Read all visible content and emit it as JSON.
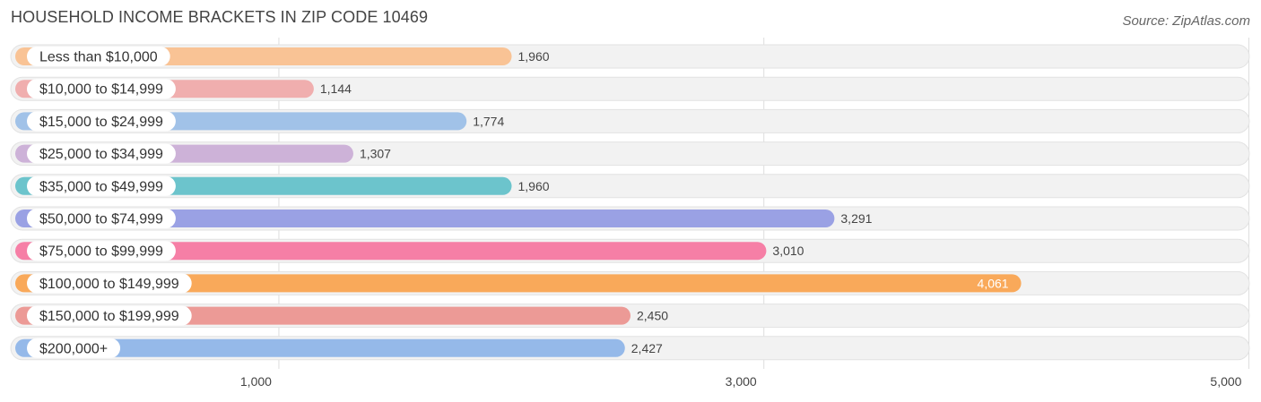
{
  "header": {
    "title": "HOUSEHOLD INCOME BRACKETS IN ZIP CODE 10469",
    "source": "Source: ZipAtlas.com"
  },
  "chart_data": {
    "type": "bar",
    "orientation": "horizontal",
    "title": "HOUSEHOLD INCOME BRACKETS IN ZIP CODE 10469",
    "xlabel": "",
    "ylabel": "",
    "categories": [
      "Less than $10,000",
      "$10,000 to $14,999",
      "$15,000 to $24,999",
      "$25,000 to $34,999",
      "$35,000 to $49,999",
      "$50,000 to $74,999",
      "$75,000 to $99,999",
      "$100,000 to $149,999",
      "$150,000 to $199,999",
      "$200,000+"
    ],
    "values": [
      1960,
      1144,
      1774,
      1307,
      1960,
      3291,
      3010,
      4061,
      2450,
      2427
    ],
    "value_labels": [
      "1,960",
      "1,144",
      "1,774",
      "1,307",
      "1,960",
      "3,291",
      "3,010",
      "4,061",
      "2,450",
      "2,427"
    ],
    "colors": [
      "#f9c395",
      "#f0aeae",
      "#a1c2e8",
      "#cdb2d8",
      "#6cc4cc",
      "#9aa1e4",
      "#f67fa6",
      "#f9a95a",
      "#ec9a96",
      "#95b9e9"
    ],
    "xticks": [
      1000,
      3000,
      5000
    ],
    "xtick_labels": [
      "1,000",
      "3,000",
      "5,000"
    ],
    "xlim": [
      -150,
      5050
    ],
    "grid": true,
    "legend": "none"
  }
}
